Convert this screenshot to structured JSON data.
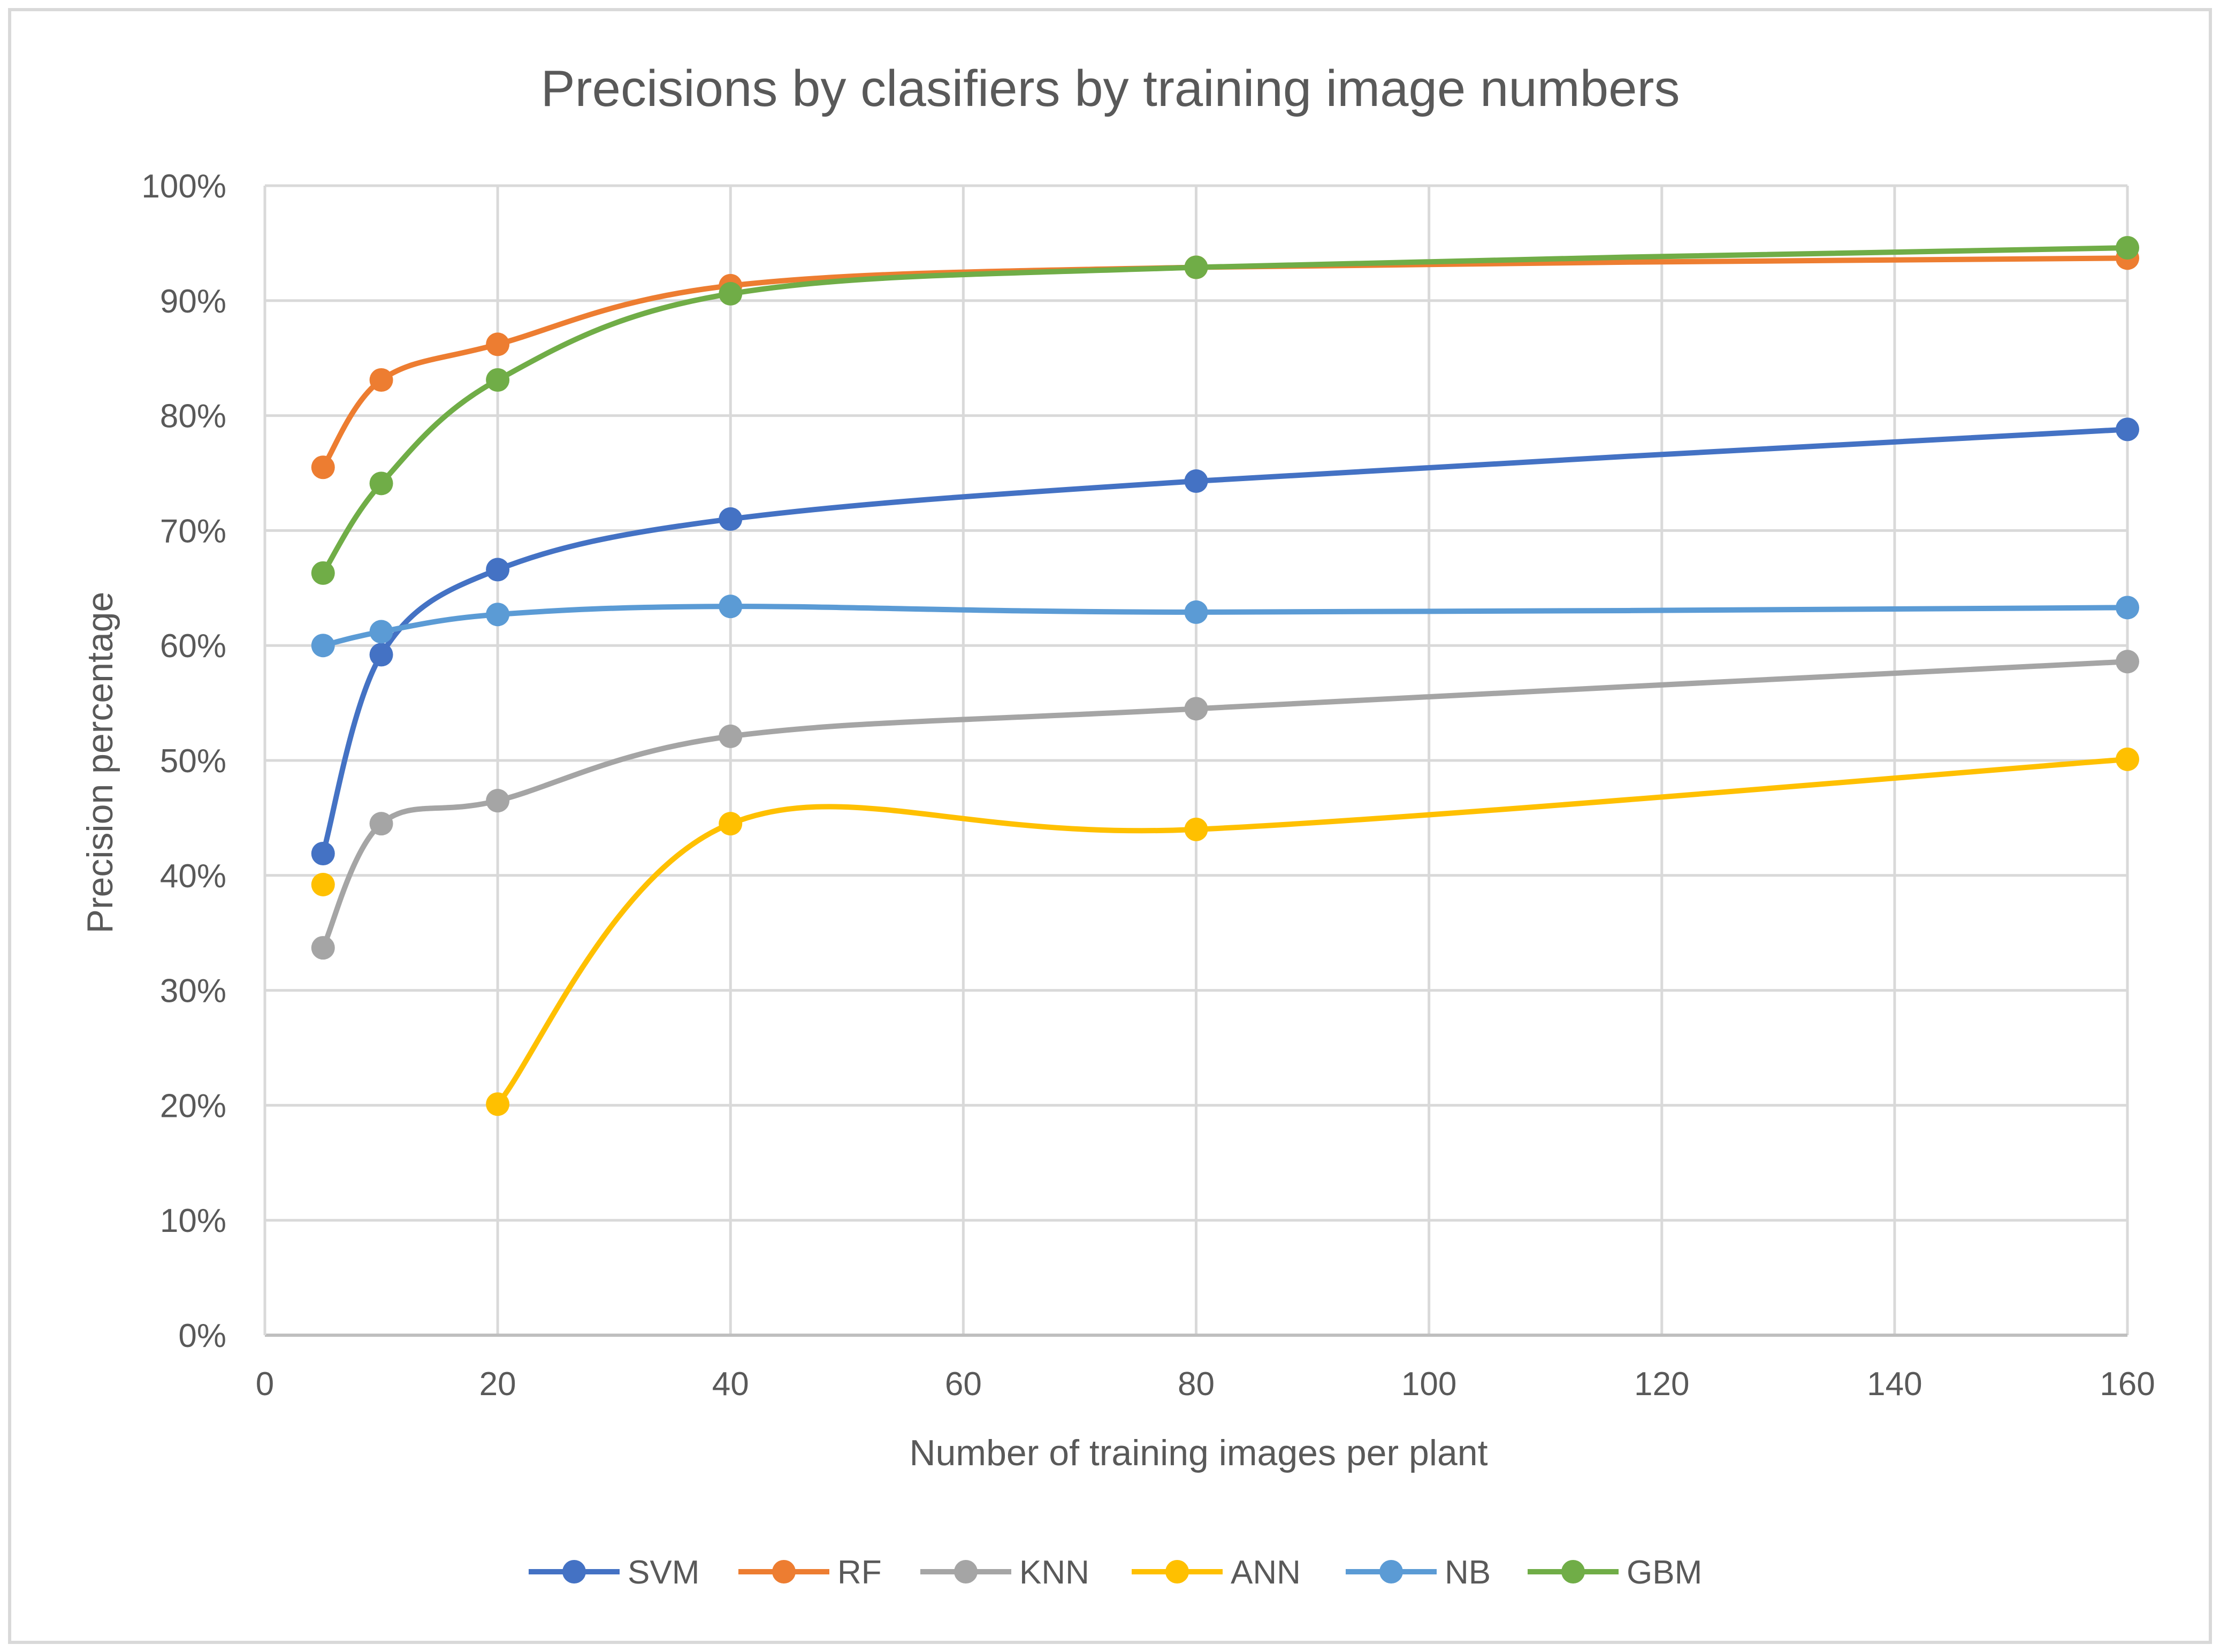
{
  "chart_data": {
    "type": "line",
    "smooth": true,
    "title": "Precisions by clasifiers by training image numbers",
    "xlabel": "Number of training images per plant",
    "ylabel": "Precision percentage",
    "xlim": [
      0,
      160
    ],
    "ylim": [
      0,
      100
    ],
    "xticks": [
      0,
      20,
      40,
      60,
      80,
      100,
      120,
      140,
      160
    ],
    "yticks": [
      0,
      10,
      20,
      30,
      40,
      50,
      60,
      70,
      80,
      90,
      100
    ],
    "xtick_labels": [
      "0",
      "20",
      "40",
      "60",
      "80",
      "100",
      "120",
      "140",
      "160"
    ],
    "ytick_labels": [
      "0%",
      "10%",
      "20%",
      "30%",
      "40%",
      "50%",
      "60%",
      "70%",
      "80%",
      "90%",
      "100%"
    ],
    "grid": true,
    "legend_position": "bottom",
    "series": [
      {
        "name": "SVM",
        "color": "#4472C4",
        "points": [
          [
            5,
            41.9
          ],
          [
            10,
            59.2
          ],
          [
            20,
            66.6
          ],
          [
            40,
            71.0
          ],
          [
            80,
            74.3
          ],
          [
            160,
            78.8
          ]
        ]
      },
      {
        "name": "RF",
        "color": "#ED7D31",
        "points": [
          [
            5,
            75.5
          ],
          [
            10,
            83.1
          ],
          [
            20,
            86.2
          ],
          [
            40,
            91.3
          ],
          [
            80,
            92.9
          ],
          [
            160,
            93.7
          ]
        ]
      },
      {
        "name": "KNN",
        "color": "#A5A5A5",
        "points": [
          [
            5,
            33.7
          ],
          [
            10,
            44.5
          ],
          [
            20,
            46.5
          ],
          [
            40,
            52.1
          ],
          [
            80,
            54.5
          ],
          [
            160,
            58.6
          ]
        ]
      },
      {
        "name": "ANN",
        "color": "#FFC000",
        "points": [
          [
            5,
            39.2
          ],
          [
            20,
            20.1
          ],
          [
            40,
            44.5
          ],
          [
            80,
            44.0
          ],
          [
            160,
            50.1
          ]
        ]
      },
      {
        "name": "NB",
        "color": "#5B9BD5",
        "points": [
          [
            5,
            60.0
          ],
          [
            10,
            61.2
          ],
          [
            20,
            62.7
          ],
          [
            40,
            63.4
          ],
          [
            80,
            62.9
          ],
          [
            160,
            63.3
          ]
        ]
      },
      {
        "name": "GBM",
        "color": "#70AD47",
        "points": [
          [
            5,
            66.3
          ],
          [
            10,
            74.1
          ],
          [
            20,
            83.1
          ],
          [
            40,
            90.6
          ],
          [
            80,
            92.9
          ],
          [
            160,
            94.6
          ]
        ]
      }
    ],
    "colors": {
      "background": "#FFFFFF",
      "border": "#D9D9D9",
      "grid": "#D9D9D9",
      "text": "#595959"
    }
  }
}
